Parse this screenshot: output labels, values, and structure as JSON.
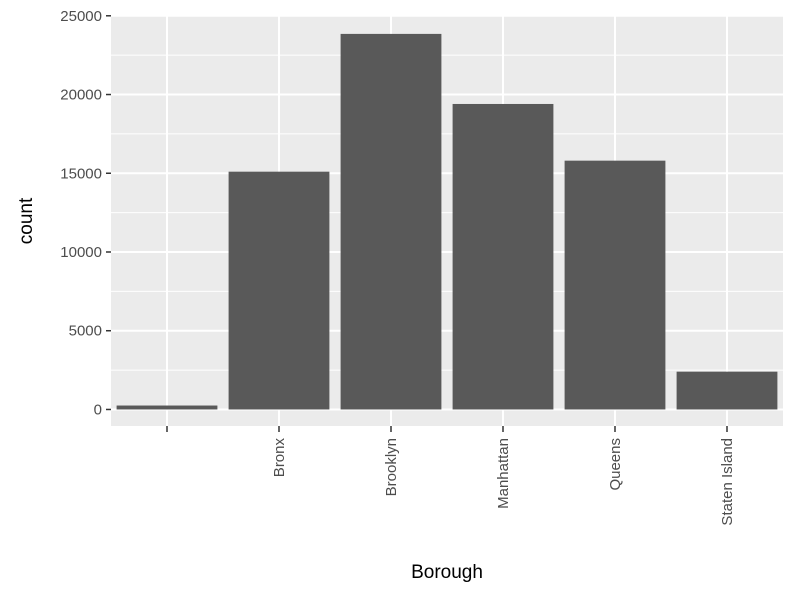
{
  "chart_data": {
    "type": "bar",
    "categories": [
      "",
      "Bronx",
      "Brooklyn",
      "Manhattan",
      "Queens",
      "Staten Island"
    ],
    "values": [
      250,
      15100,
      23850,
      19400,
      15800,
      2400
    ],
    "xlabel": "Borough",
    "ylabel": "count",
    "yticks": [
      0,
      5000,
      10000,
      15000,
      20000,
      25000
    ],
    "ylim": [
      -1050,
      25050
    ],
    "grid": true,
    "colors": {
      "panel": "#ebebeb",
      "grid": "#ffffff",
      "bar": "#595959",
      "tick": "#333333",
      "tick_text": "#4d4d4d"
    }
  }
}
